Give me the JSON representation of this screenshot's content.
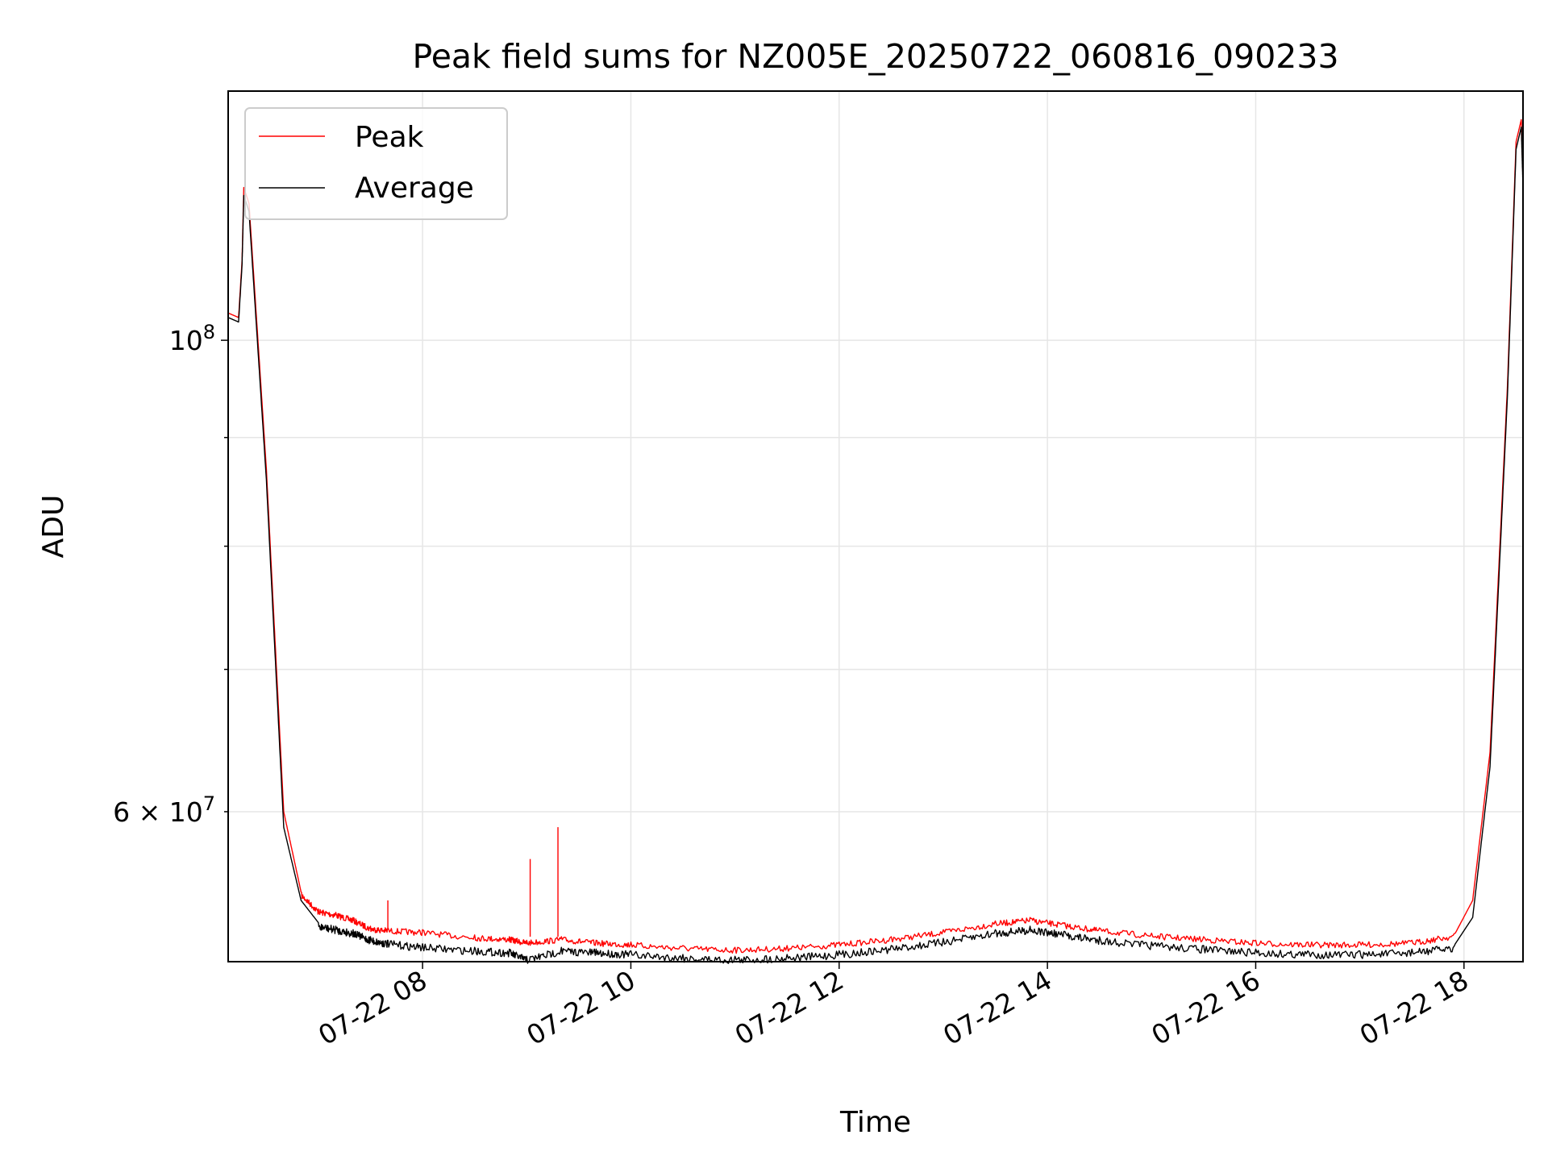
{
  "chart_data": {
    "type": "line",
    "title": "Peak field sums for NZ005E_20250722_060816_090233",
    "xlabel": "Time",
    "ylabel": "ADU",
    "yscale": "log",
    "xlim": [
      "2025-07-22 06:08",
      "2025-07-22 18:34"
    ],
    "ylim": [
      51000000,
      131000000
    ],
    "grid": true,
    "legend_position": "top-left",
    "x_tick_labels": [
      "07-22 08",
      "07-22 10",
      "07-22 12",
      "07-22 14",
      "07-22 16",
      "07-22 18"
    ],
    "x_tick_values": [
      "2025-07-22 08:00",
      "2025-07-22 10:00",
      "2025-07-22 12:00",
      "2025-07-22 14:00",
      "2025-07-22 16:00",
      "2025-07-22 18:00"
    ],
    "y_major_ticks": [
      {
        "value": 100000000,
        "label_base": "10",
        "label_exp": "8"
      }
    ],
    "y_minor_ticks": [
      {
        "value": 60000000,
        "label_base": "6 × 10",
        "label_exp": "7"
      }
    ],
    "y_unlabeled_minor_ticks": [
      70000000,
      80000000,
      90000000
    ],
    "x": [
      "2025-07-22 06:08",
      "2025-07-22 06:14",
      "2025-07-22 06:16",
      "2025-07-22 06:17",
      "2025-07-22 06:20",
      "2025-07-22 06:30",
      "2025-07-22 06:40",
      "2025-07-22 06:50",
      "2025-07-22 07:00",
      "2025-07-22 07:10",
      "2025-07-22 07:20",
      "2025-07-22 07:30",
      "2025-07-22 07:40",
      "2025-07-22 08:00",
      "2025-07-22 08:30",
      "2025-07-22 08:50",
      "2025-07-22 09:00",
      "2025-07-22 09:20",
      "2025-07-22 09:40",
      "2025-07-22 10:00",
      "2025-07-22 10:30",
      "2025-07-22 11:00",
      "2025-07-22 11:30",
      "2025-07-22 12:00",
      "2025-07-22 12:30",
      "2025-07-22 13:00",
      "2025-07-22 13:30",
      "2025-07-22 13:50",
      "2025-07-22 14:10",
      "2025-07-22 14:30",
      "2025-07-22 15:00",
      "2025-07-22 15:30",
      "2025-07-22 16:00",
      "2025-07-22 16:30",
      "2025-07-22 17:00",
      "2025-07-22 17:30",
      "2025-07-22 17:55",
      "2025-07-22 18:05",
      "2025-07-22 18:15",
      "2025-07-22 18:25",
      "2025-07-22 18:30",
      "2025-07-22 18:33",
      "2025-07-22 18:34"
    ],
    "series": [
      {
        "name": "Peak",
        "color": "#ff0000",
        "values": [
          103000000,
          102500000,
          109000000,
          118000000,
          116000000,
          87000000,
          60000000,
          55000000,
          54000000,
          53800000,
          53500000,
          53000000,
          52900000,
          52800000,
          52500000,
          52400000,
          52200000,
          52400000,
          52200000,
          52100000,
          51900000,
          51800000,
          51900000,
          52100000,
          52400000,
          52800000,
          53300000,
          53500000,
          53200000,
          52900000,
          52600000,
          52400000,
          52200000,
          52100000,
          52100000,
          52200000,
          52600000,
          54500000,
          64000000,
          95000000,
          124000000,
          127000000,
          119000000
        ]
      },
      {
        "name": "Average",
        "color": "#000000",
        "values": [
          102500000,
          102000000,
          108500000,
          117000000,
          115000000,
          86000000,
          59000000,
          54500000,
          53200000,
          53000000,
          52800000,
          52400000,
          52200000,
          52000000,
          51800000,
          51700000,
          51300000,
          51800000,
          51700000,
          51600000,
          51400000,
          51300000,
          51400000,
          51600000,
          51900000,
          52300000,
          52800000,
          53000000,
          52700000,
          52400000,
          52100000,
          51900000,
          51700000,
          51600000,
          51600000,
          51700000,
          52000000,
          53500000,
          63000000,
          94000000,
          123000000,
          126000000,
          118000000
        ]
      }
    ],
    "spikes": [
      {
        "series": "Peak",
        "x": "2025-07-22 09:02",
        "value": 57000000
      },
      {
        "series": "Peak",
        "x": "2025-07-22 09:18",
        "value": 59000000
      },
      {
        "series": "Peak",
        "x": "2025-07-22 07:40",
        "value": 54500000
      }
    ]
  }
}
